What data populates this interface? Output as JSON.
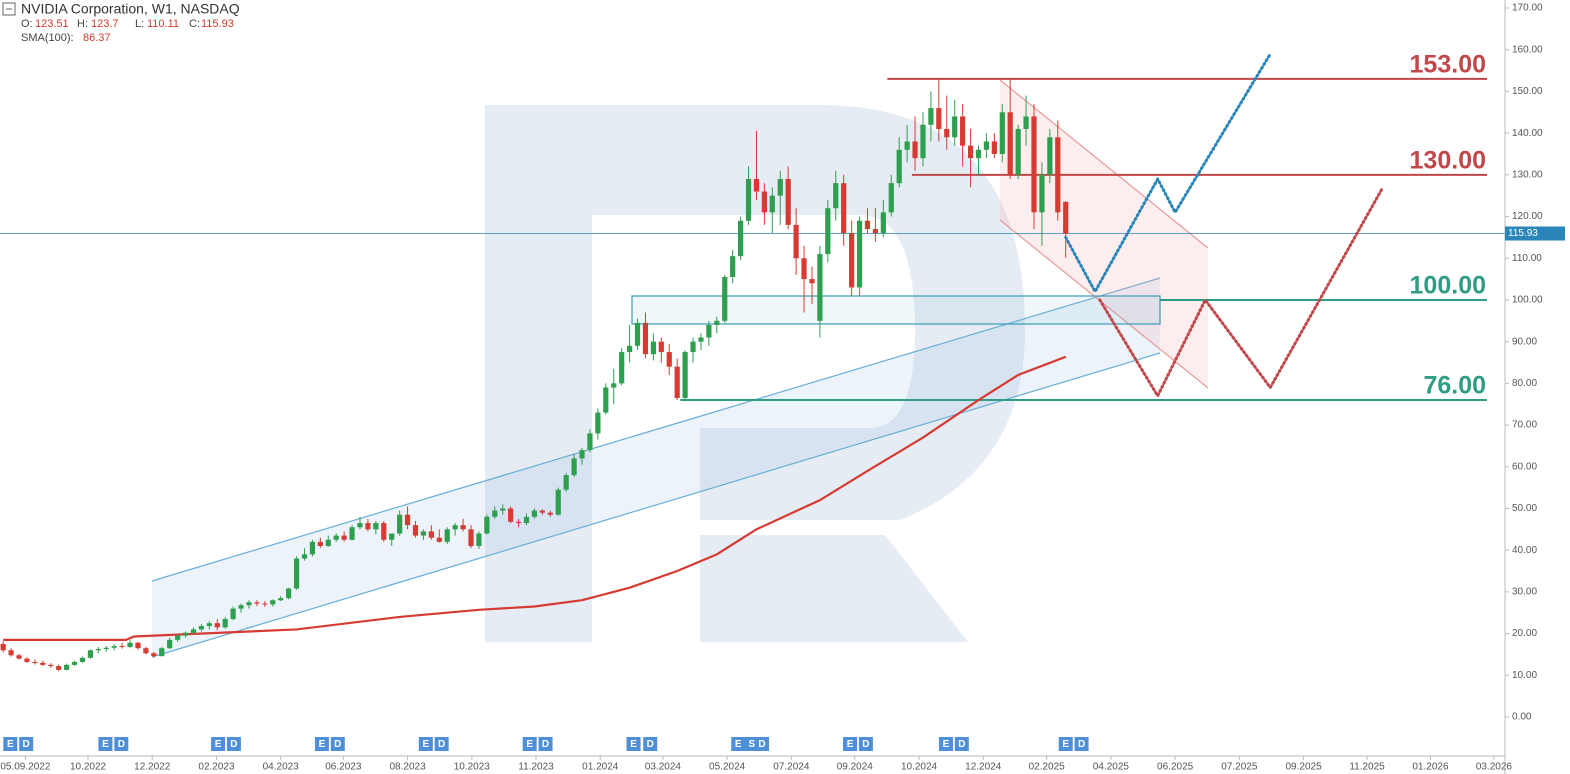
{
  "chart_data": {
    "type": "candlestick",
    "header": {
      "title": "NVIDIA Corporation,  W1,  NASDAQ",
      "ohlc_labels": [
        "O:",
        "H:",
        "L:",
        "C:"
      ],
      "sma_label": "SMA(100):"
    },
    "up_color": "#2e9e4f",
    "down_color": "#d63a32",
    "candles": [
      [
        17.5,
        18.2,
        15.5,
        16
      ],
      [
        16,
        16.5,
        14.5,
        14.8
      ],
      [
        14.8,
        15.2,
        13.8,
        14
      ],
      [
        14,
        14.3,
        13,
        13.2
      ],
      [
        13.2,
        13.8,
        12.6,
        13
      ],
      [
        13,
        13.5,
        12.2,
        12.5
      ],
      [
        12.5,
        12.9,
        11.8,
        12.2
      ],
      [
        12.2,
        12.6,
        11,
        11.3
      ],
      [
        11.3,
        12.8,
        11.2,
        12.5
      ],
      [
        12.5,
        13.5,
        12.2,
        13.2
      ],
      [
        13.2,
        14.5,
        13,
        14.2
      ],
      [
        14.2,
        16.2,
        14,
        16
      ],
      [
        16,
        16.8,
        15.2,
        16.3
      ],
      [
        16.3,
        17,
        15.6,
        16.6
      ],
      [
        16.6,
        17.5,
        16,
        17
      ],
      [
        17,
        17.8,
        16.4,
        16.8
      ],
      [
        16.8,
        18.5,
        16.5,
        17.8
      ],
      [
        17.8,
        18,
        16.2,
        16.5
      ],
      [
        16.5,
        16.8,
        15,
        15.3
      ],
      [
        15.3,
        15.6,
        14.2,
        14.6
      ],
      [
        14.6,
        16.8,
        14.5,
        16.5
      ],
      [
        16.5,
        19,
        16.3,
        18.5
      ],
      [
        18.5,
        20,
        18,
        19.5
      ],
      [
        19.5,
        20.5,
        19,
        20.2
      ],
      [
        20.2,
        21.5,
        19.8,
        21
      ],
      [
        21,
        22.3,
        20.5,
        21.8
      ],
      [
        21.8,
        23,
        21,
        22.5
      ],
      [
        22.5,
        23.5,
        20.8,
        21.5
      ],
      [
        21.5,
        24,
        21.2,
        23.5
      ],
      [
        23.5,
        26.5,
        23.2,
        26
      ],
      [
        26,
        27.2,
        25,
        26.8
      ],
      [
        26.8,
        28,
        26,
        27.5
      ],
      [
        27.5,
        28,
        26.6,
        27.2
      ],
      [
        27.2,
        27.8,
        26.4,
        27
      ],
      [
        27,
        28.2,
        26.5,
        28
      ],
      [
        28,
        29,
        27.8,
        28.5
      ],
      [
        28.5,
        31,
        28.2,
        30.8
      ],
      [
        30.8,
        38.5,
        30.5,
        38
      ],
      [
        38,
        40.5,
        37.5,
        39
      ],
      [
        39,
        42.5,
        38.5,
        42
      ],
      [
        42,
        43,
        40.5,
        41
      ],
      [
        41,
        43.5,
        40.8,
        42.5
      ],
      [
        42.5,
        44,
        42,
        43.5
      ],
      [
        43.5,
        44.5,
        42,
        42.5
      ],
      [
        42.5,
        46,
        42.3,
        45.5
      ],
      [
        45.5,
        48,
        45,
        46.5
      ],
      [
        46.5,
        47.5,
        44.5,
        45
      ],
      [
        45,
        47,
        43.8,
        46.5
      ],
      [
        46.5,
        47,
        42,
        42.5
      ],
      [
        42.5,
        44,
        41,
        44
      ],
      [
        44,
        49.5,
        43.5,
        48.5
      ],
      [
        48.5,
        50.5,
        45,
        46
      ],
      [
        46,
        47,
        43,
        43.5
      ],
      [
        43.5,
        45,
        42.5,
        44.5
      ],
      [
        44.5,
        46,
        42.5,
        43
      ],
      [
        43,
        45,
        41.8,
        42
      ],
      [
        42,
        45.5,
        41.5,
        45
      ],
      [
        45,
        46.5,
        43.5,
        46
      ],
      [
        46,
        47.5,
        44.5,
        45
      ],
      [
        45,
        46,
        40.5,
        41
      ],
      [
        41,
        44.5,
        40.3,
        44
      ],
      [
        44,
        48.5,
        43.8,
        48
      ],
      [
        48,
        50.5,
        47.5,
        49.5
      ],
      [
        49.5,
        51,
        48.5,
        50
      ],
      [
        50,
        50.5,
        46.5,
        46.8
      ],
      [
        46.8,
        47.5,
        45.5,
        46.5
      ],
      [
        46.5,
        48.8,
        46,
        48
      ],
      [
        48,
        50,
        47.5,
        49.5
      ],
      [
        49.5,
        49.8,
        48.5,
        49
      ],
      [
        49,
        49.5,
        48,
        48.5
      ],
      [
        48.5,
        55,
        48.3,
        54.5
      ],
      [
        54.5,
        58.5,
        54,
        58
      ],
      [
        58,
        63,
        57.5,
        62
      ],
      [
        62,
        64.5,
        60.5,
        64
      ],
      [
        64,
        69,
        63.5,
        68
      ],
      [
        68,
        74,
        66.5,
        73
      ],
      [
        73,
        80,
        72.5,
        79
      ],
      [
        79,
        83.5,
        75,
        80
      ],
      [
        80,
        88.5,
        79.5,
        87.5
      ],
      [
        87.5,
        94,
        85,
        89
      ],
      [
        89,
        95.5,
        88,
        94.5
      ],
      [
        94.5,
        97,
        86,
        87
      ],
      [
        87,
        92,
        85.5,
        90
      ],
      [
        90,
        91,
        85,
        87.5
      ],
      [
        87.5,
        89.5,
        82,
        84
      ],
      [
        84,
        86,
        76,
        76.5
      ],
      [
        76.5,
        88,
        76,
        87.5
      ],
      [
        87.5,
        91,
        85,
        90
      ],
      [
        90,
        92,
        88,
        91
      ],
      [
        91,
        95,
        89,
        94
      ],
      [
        94,
        96,
        92,
        95
      ],
      [
        95,
        106,
        94.5,
        105.5
      ],
      [
        105.5,
        112,
        104,
        110.5
      ],
      [
        110.5,
        120,
        109.5,
        119
      ],
      [
        119,
        132,
        118,
        129
      ],
      [
        129,
        140.5,
        124,
        126
      ],
      [
        126,
        128,
        118,
        121
      ],
      [
        121,
        127,
        116,
        125
      ],
      [
        125,
        131,
        118,
        129
      ],
      [
        129,
        132,
        117,
        118
      ],
      [
        118,
        122,
        106,
        110
      ],
      [
        110,
        113,
        97,
        105
      ],
      [
        105,
        108,
        99,
        104
      ],
      [
        95,
        113,
        91,
        111
      ],
      [
        111,
        124,
        109,
        122
      ],
      [
        122,
        131,
        119,
        128
      ],
      [
        128,
        130,
        113,
        116
      ],
      [
        116,
        119,
        101,
        103
      ],
      [
        103,
        120,
        101,
        119
      ],
      [
        119,
        122,
        116,
        117
      ],
      [
        117,
        122,
        114,
        116
      ],
      [
        116,
        124,
        115,
        121
      ],
      [
        121,
        130,
        120,
        128
      ],
      [
        128,
        139,
        127,
        136
      ],
      [
        136,
        142,
        133,
        138
      ],
      [
        138,
        144,
        131,
        134
      ],
      [
        134,
        145,
        132,
        142
      ],
      [
        142,
        150,
        138,
        146
      ],
      [
        146,
        153,
        138,
        141
      ],
      [
        141,
        149,
        136,
        139
      ],
      [
        139,
        148,
        137,
        144
      ],
      [
        144,
        147,
        132,
        137
      ],
      [
        137,
        141,
        127,
        134
      ],
      [
        134,
        137,
        130,
        136
      ],
      [
        136,
        140,
        134,
        138
      ],
      [
        138,
        140,
        134,
        135
      ],
      [
        135,
        147,
        133,
        145
      ],
      [
        145,
        153,
        129,
        130
      ],
      [
        130,
        142,
        129,
        141
      ],
      [
        141,
        149,
        137,
        144
      ],
      [
        144,
        147,
        117,
        121
      ],
      [
        121,
        133,
        113,
        130
      ],
      [
        130,
        141,
        128,
        139
      ],
      [
        139,
        143,
        119,
        121
      ],
      [
        123.51,
        123.7,
        110.11,
        115.93
      ]
    ],
    "sma": {
      "name": "SMA(100)",
      "color": "#d63a32",
      "x": [
        0,
        15.5,
        16.5,
        37,
        50,
        60,
        67,
        73,
        79,
        85,
        90,
        95,
        103,
        109,
        116,
        123,
        128,
        134
      ],
      "values": [
        18.5,
        18.5,
        19.3,
        21,
        24,
        25.7,
        26.5,
        28,
        31,
        35,
        39,
        45,
        52,
        59,
        67,
        76,
        82,
        86.37
      ]
    },
    "levels": [
      {
        "value": 153,
        "label": "153.00",
        "color": "#c0474a",
        "x_start": 111.5
      },
      {
        "value": 130,
        "label": "130.00",
        "color": "#c0474a",
        "x_start": 114.6
      },
      {
        "value": 100,
        "label": "100.00",
        "color": "#2f9c84",
        "x_start": 145.9
      },
      {
        "value": 76,
        "label": "76.00",
        "color": "#2f9c84",
        "x_start": 85.4
      }
    ],
    "forecasts": [
      {
        "color": "#2a86b8",
        "x": [
          134,
          137.7,
          145.6,
          147.8,
          159.8
        ],
        "values": [
          115,
          102,
          129,
          121,
          159
        ]
      },
      {
        "color": "#c0474a",
        "x": [
          138.3,
          145.6,
          151.6,
          159.8,
          174
        ],
        "values": [
          100,
          77,
          100,
          79,
          127
        ]
      }
    ],
    "last_price_color": "#2a86b8",
    "xlim": [
      -0.4,
      189.4
    ],
    "ylim": [
      -9.35,
      171.92
    ],
    "yticks": [
      {
        "value": 0,
        "label": "0.00"
      },
      {
        "value": 10,
        "label": "10.00"
      },
      {
        "value": 20,
        "label": "20.00"
      },
      {
        "value": 30,
        "label": "30.00"
      },
      {
        "value": 40,
        "label": "40.00"
      },
      {
        "value": 50,
        "label": "50.00"
      },
      {
        "value": 60,
        "label": "60.00"
      },
      {
        "value": 70,
        "label": "70.00"
      },
      {
        "value": 80,
        "label": "80.00"
      },
      {
        "value": 90,
        "label": "90.00"
      },
      {
        "value": 100,
        "label": "100.00"
      },
      {
        "value": 110,
        "label": "110.00"
      },
      {
        "value": 120,
        "label": "120.00"
      },
      {
        "value": 130,
        "label": "130.00"
      },
      {
        "value": 140,
        "label": "140.00"
      },
      {
        "value": 150,
        "label": "150.00"
      },
      {
        "value": 160,
        "label": "160.00"
      },
      {
        "value": 170,
        "label": "170.00"
      }
    ],
    "xticks": [
      {
        "value": 2.8,
        "label": "05.09.2022"
      },
      {
        "value": 10.7,
        "label": "10.2022"
      },
      {
        "value": 18.8,
        "label": "12.2022"
      },
      {
        "value": 26.9,
        "label": "02.2023"
      },
      {
        "value": 35,
        "label": "04.2023"
      },
      {
        "value": 42.9,
        "label": "06.2023"
      },
      {
        "value": 51,
        "label": "08.2023"
      },
      {
        "value": 59.1,
        "label": "10.2023"
      },
      {
        "value": 67.2,
        "label": "11.2023"
      },
      {
        "value": 75.3,
        "label": "01.2024"
      },
      {
        "value": 83.2,
        "label": "03.2024"
      },
      {
        "value": 91.3,
        "label": "05.2024"
      },
      {
        "value": 99.4,
        "label": "07.2024"
      },
      {
        "value": 107.4,
        "label": "09.2024"
      },
      {
        "value": 115.5,
        "label": "10.2024"
      },
      {
        "value": 123.6,
        "label": "12.2024"
      },
      {
        "value": 131.6,
        "label": "02.2025"
      },
      {
        "value": 139.7,
        "label": "04.2025"
      },
      {
        "value": 147.8,
        "label": "06.2025"
      },
      {
        "value": 155.9,
        "label": "07.2025"
      },
      {
        "value": 164,
        "label": "09.2025"
      },
      {
        "value": 172,
        "label": "11.2025"
      },
      {
        "value": 180,
        "label": "01.2026"
      },
      {
        "value": 188,
        "label": "03.2026"
      }
    ],
    "events": [
      {
        "x": 0.9,
        "label": "E"
      },
      {
        "x": 2.9,
        "label": "D"
      },
      {
        "x": 12.9,
        "label": "E"
      },
      {
        "x": 14.9,
        "label": "D"
      },
      {
        "x": 27.1,
        "label": "E"
      },
      {
        "x": 29.1,
        "label": "D"
      },
      {
        "x": 40.2,
        "label": "E"
      },
      {
        "x": 42.2,
        "label": "D"
      },
      {
        "x": 53.3,
        "label": "E"
      },
      {
        "x": 55.3,
        "label": "D"
      },
      {
        "x": 66.4,
        "label": "E"
      },
      {
        "x": 68.4,
        "label": "D"
      },
      {
        "x": 79.5,
        "label": "E"
      },
      {
        "x": 81.6,
        "label": "D"
      },
      {
        "x": 92.7,
        "label": "E"
      },
      {
        "x": 94.4,
        "label": "S"
      },
      {
        "x": 95.7,
        "label": "D"
      },
      {
        "x": 106.8,
        "label": "E"
      },
      {
        "x": 108.8,
        "label": "D"
      },
      {
        "x": 118.9,
        "label": "E"
      },
      {
        "x": 120.9,
        "label": "D"
      },
      {
        "x": 134,
        "label": "E"
      },
      {
        "x": 136,
        "label": "D"
      }
    ]
  }
}
